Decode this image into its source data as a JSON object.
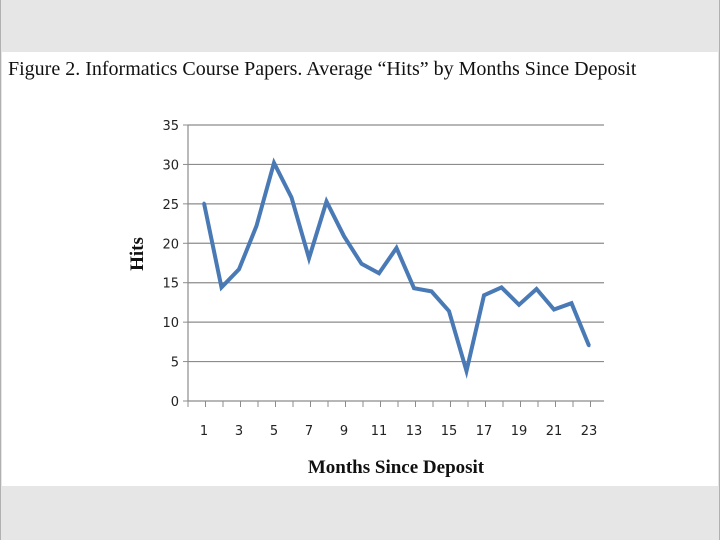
{
  "chart_data": {
    "type": "line",
    "title": "Figure 2. Informatics Course Papers. Average “Hits” by Months Since Deposit",
    "xlabel": "Months Since Deposit",
    "ylabel": "Hits",
    "x": [
      1,
      2,
      3,
      4,
      5,
      6,
      7,
      8,
      9,
      10,
      11,
      12,
      13,
      14,
      15,
      16,
      17,
      18,
      19,
      20,
      21,
      22,
      23
    ],
    "xticks": [
      "1",
      "3",
      "5",
      "7",
      "9",
      "11",
      "13",
      "15",
      "17",
      "19",
      "21",
      "23"
    ],
    "yticks": [
      "0",
      "5",
      "10",
      "15",
      "20",
      "25",
      "30",
      "35"
    ],
    "ylim": [
      0,
      35
    ],
    "grid": true,
    "series": [
      {
        "values": [
          25.1,
          14.4,
          16.7,
          22.2,
          30.2,
          25.8,
          18.1,
          25.3,
          20.9,
          17.4,
          16.2,
          19.4,
          14.3,
          13.9,
          11.4,
          3.8,
          13.4,
          14.4,
          12.2,
          14.2,
          11.6,
          12.4,
          7.0
        ],
        "color": "#4a7ab5"
      }
    ]
  }
}
